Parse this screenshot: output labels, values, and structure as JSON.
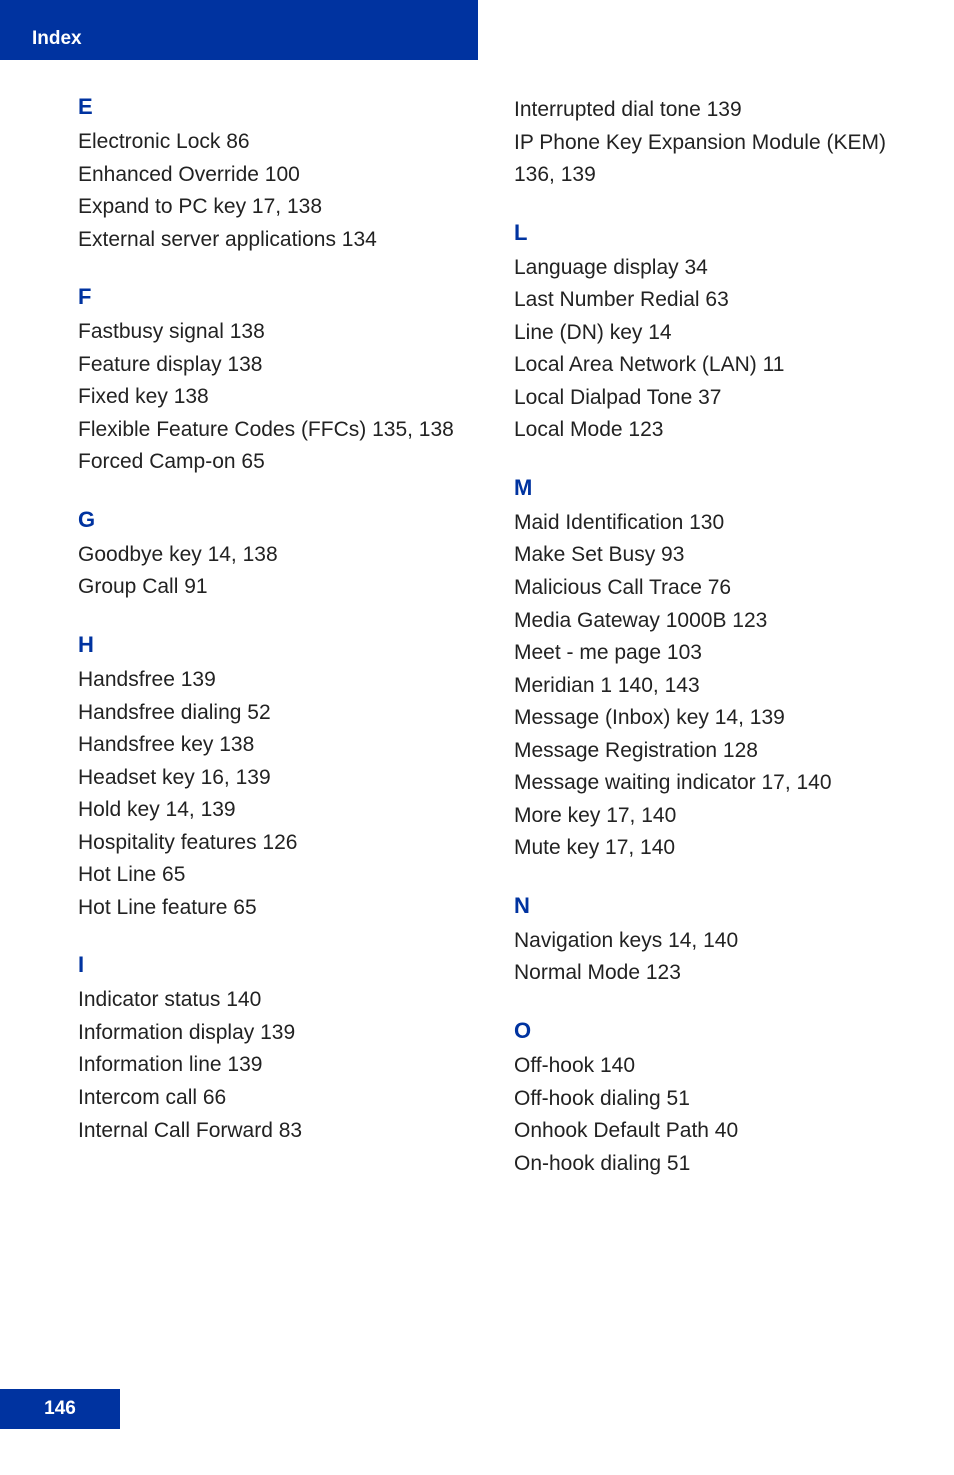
{
  "header": {
    "title": "Index"
  },
  "footer": {
    "page": "146"
  },
  "left": [
    {
      "letter": "E",
      "entries": [
        "Electronic Lock 86",
        "Enhanced Override 100",
        "Expand to PC key 17, 138",
        "External server applications 134"
      ]
    },
    {
      "letter": "F",
      "entries": [
        "Fastbusy signal 138",
        "Feature display 138",
        "Fixed key 138",
        "Flexible Feature Codes (FFCs) 135, 138",
        "Forced Camp-on 65"
      ]
    },
    {
      "letter": "G",
      "entries": [
        "Goodbye key 14, 138",
        "Group Call 91"
      ]
    },
    {
      "letter": "H",
      "entries": [
        "Handsfree 139",
        "Handsfree dialing 52",
        "Handsfree key 138",
        "Headset key 16, 139",
        "Hold key 14, 139",
        "Hospitality features 126",
        "Hot Line 65",
        "Hot Line feature 65"
      ]
    },
    {
      "letter": "I",
      "entries": [
        "Indicator status 140",
        "Information display 139",
        "Information line 139",
        "Intercom call 66",
        "Internal Call Forward 83"
      ]
    }
  ],
  "rightTop": [
    "Interrupted dial tone 139",
    "IP Phone Key Expansion Module (KEM) 136, 139"
  ],
  "right": [
    {
      "letter": "L",
      "entries": [
        "Language display 34",
        "Last Number Redial 63",
        "Line (DN) key 14",
        "Local Area Network (LAN) 11",
        "Local Dialpad Tone 37",
        "Local Mode 123"
      ]
    },
    {
      "letter": "M",
      "entries": [
        "Maid Identification 130",
        "Make Set Busy 93",
        "Malicious Call Trace 76",
        "Media Gateway 1000B 123",
        "Meet - me page 103",
        "Meridian 1 140, 143",
        "Message (Inbox) key 14, 139",
        "Message Registration 128",
        "Message waiting indicator 17, 140",
        "More key 17, 140",
        "Mute key 17, 140"
      ]
    },
    {
      "letter": "N",
      "entries": [
        "Navigation keys 14, 140",
        "Normal Mode 123"
      ]
    },
    {
      "letter": "O",
      "entries": [
        "Off-hook 140",
        "Off-hook dialing 51",
        "Onhook Default Path 40",
        "On-hook dialing 51"
      ]
    }
  ]
}
